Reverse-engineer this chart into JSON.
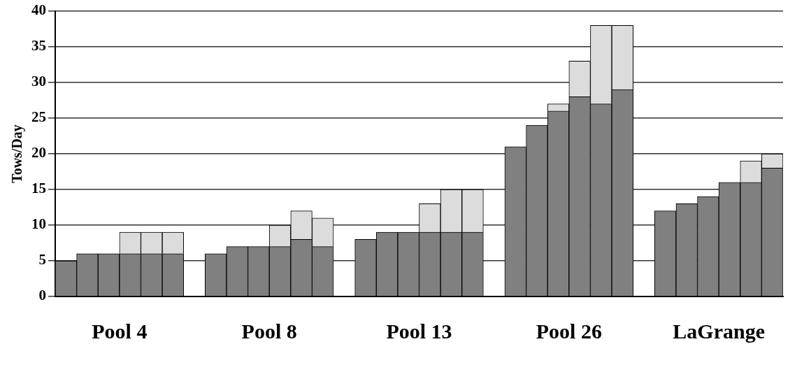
{
  "chart_data": {
    "type": "bar",
    "stacked": true,
    "ylabel": "Tows/Day",
    "categories": [
      null,
      null,
      "Pool 4",
      null,
      null,
      null,
      null,
      null,
      null,
      "Pool 8",
      null,
      null,
      null,
      null,
      null,
      null,
      "Pool 13",
      null,
      null,
      null,
      null,
      null,
      null,
      "Pool 26",
      null,
      null,
      null,
      null,
      null,
      null,
      "LaGrange",
      null,
      null,
      null
    ],
    "series": [
      {
        "color": "#808080",
        "values": [
          5,
          6,
          6,
          6,
          6,
          6,
          null,
          6,
          7,
          7,
          7,
          8,
          7,
          null,
          8,
          9,
          9,
          9,
          9,
          9,
          null,
          21,
          24,
          26,
          28,
          27,
          29,
          null,
          12,
          13,
          14,
          16,
          16,
          18
        ]
      },
      {
        "color": "#dcdcdc",
        "values": [
          null,
          null,
          null,
          3,
          3,
          3,
          null,
          null,
          null,
          null,
          3,
          4,
          4,
          null,
          null,
          null,
          null,
          4,
          6,
          6,
          null,
          null,
          null,
          1,
          5,
          11,
          9,
          null,
          null,
          null,
          null,
          null,
          3,
          2
        ]
      }
    ],
    "ylim": [
      0,
      40
    ],
    "yticks": [
      0,
      5,
      10,
      15,
      20,
      25,
      30,
      35,
      40
    ],
    "grid": "y",
    "legend": false
  }
}
